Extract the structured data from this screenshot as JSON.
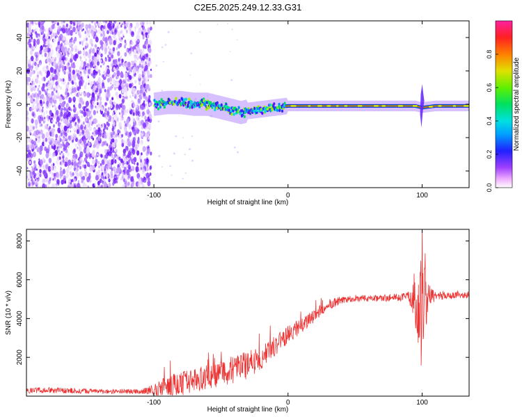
{
  "figure_title": "C2E5.2025.249.12.33.G31",
  "chart_data": [
    {
      "type": "heatmap",
      "title": "C2E5.2025.249.12.33.G31",
      "xlabel": "Height of straight line (km)",
      "ylabel": "Frequency (Hz)",
      "xlim": [
        -195,
        135
      ],
      "ylim": [
        -50,
        50
      ],
      "x_ticks": [
        -100,
        0,
        100
      ],
      "x_tick_labels": [
        "-100",
        "0",
        "100"
      ],
      "y_ticks": [
        -40,
        -20,
        0,
        20,
        40
      ],
      "y_tick_labels": [
        "-40",
        "-20",
        "0",
        "20",
        "40"
      ],
      "colorbar": {
        "label": "Normalized spectral amplitude",
        "range": [
          0,
          1
        ],
        "ticks": [
          0.0,
          0.2,
          0.4,
          0.6,
          0.8
        ],
        "tick_labels": [
          "0.0",
          "0.2",
          "0.4",
          "0.6",
          "0.8"
        ]
      },
      "noise_region_x": [
        -195,
        -102
      ],
      "signal_ridge": {
        "x": [
          -100,
          -90,
          -80,
          -70,
          -60,
          -50,
          -40,
          -35,
          -30,
          -20,
          -10,
          0,
          20,
          50,
          80,
          95,
          100,
          110,
          135
        ],
        "freq": [
          0,
          1,
          1,
          0,
          0,
          -2,
          -4,
          -5,
          -4,
          -3,
          -2,
          -1,
          -1,
          -1,
          -1,
          -1,
          -2,
          -1,
          -1
        ]
      },
      "flare": {
        "x": 100,
        "freq_range": [
          -14,
          12
        ]
      }
    },
    {
      "type": "line",
      "xlabel": "Height of straight line (km)",
      "ylabel": "SNR (10 * v/v)",
      "xlim": [
        -195,
        135
      ],
      "ylim": [
        0,
        8600
      ],
      "x_ticks": [
        -100,
        0,
        100
      ],
      "x_tick_labels": [
        "-100",
        "0",
        "100"
      ],
      "y_ticks": [
        2000,
        4000,
        6000,
        8000
      ],
      "y_tick_labels": [
        "2000",
        "4000",
        "6000",
        "8000"
      ],
      "series": [
        {
          "name": "SNR",
          "color": "#ee3333",
          "x": [
            -195,
            -170,
            -140,
            -110,
            -100,
            -90,
            -80,
            -70,
            -60,
            -50,
            -40,
            -30,
            -20,
            -10,
            0,
            10,
            20,
            30,
            40,
            50,
            60,
            70,
            80,
            90,
            95,
            100,
            105,
            110,
            120,
            135
          ],
          "mean": [
            300,
            300,
            250,
            250,
            300,
            500,
            600,
            800,
            1000,
            1200,
            1400,
            1600,
            2000,
            2600,
            3200,
            3600,
            4200,
            4700,
            4950,
            5050,
            5050,
            5050,
            5100,
            5150,
            5100,
            5000,
            5150,
            5200,
            5200,
            5250
          ],
          "spread": [
            150,
            150,
            120,
            120,
            300,
            600,
            650,
            600,
            650,
            700,
            750,
            700,
            650,
            550,
            450,
            400,
            350,
            250,
            200,
            180,
            180,
            180,
            200,
            250,
            1500,
            4000,
            600,
            250,
            200,
            200
          ]
        }
      ]
    }
  ]
}
